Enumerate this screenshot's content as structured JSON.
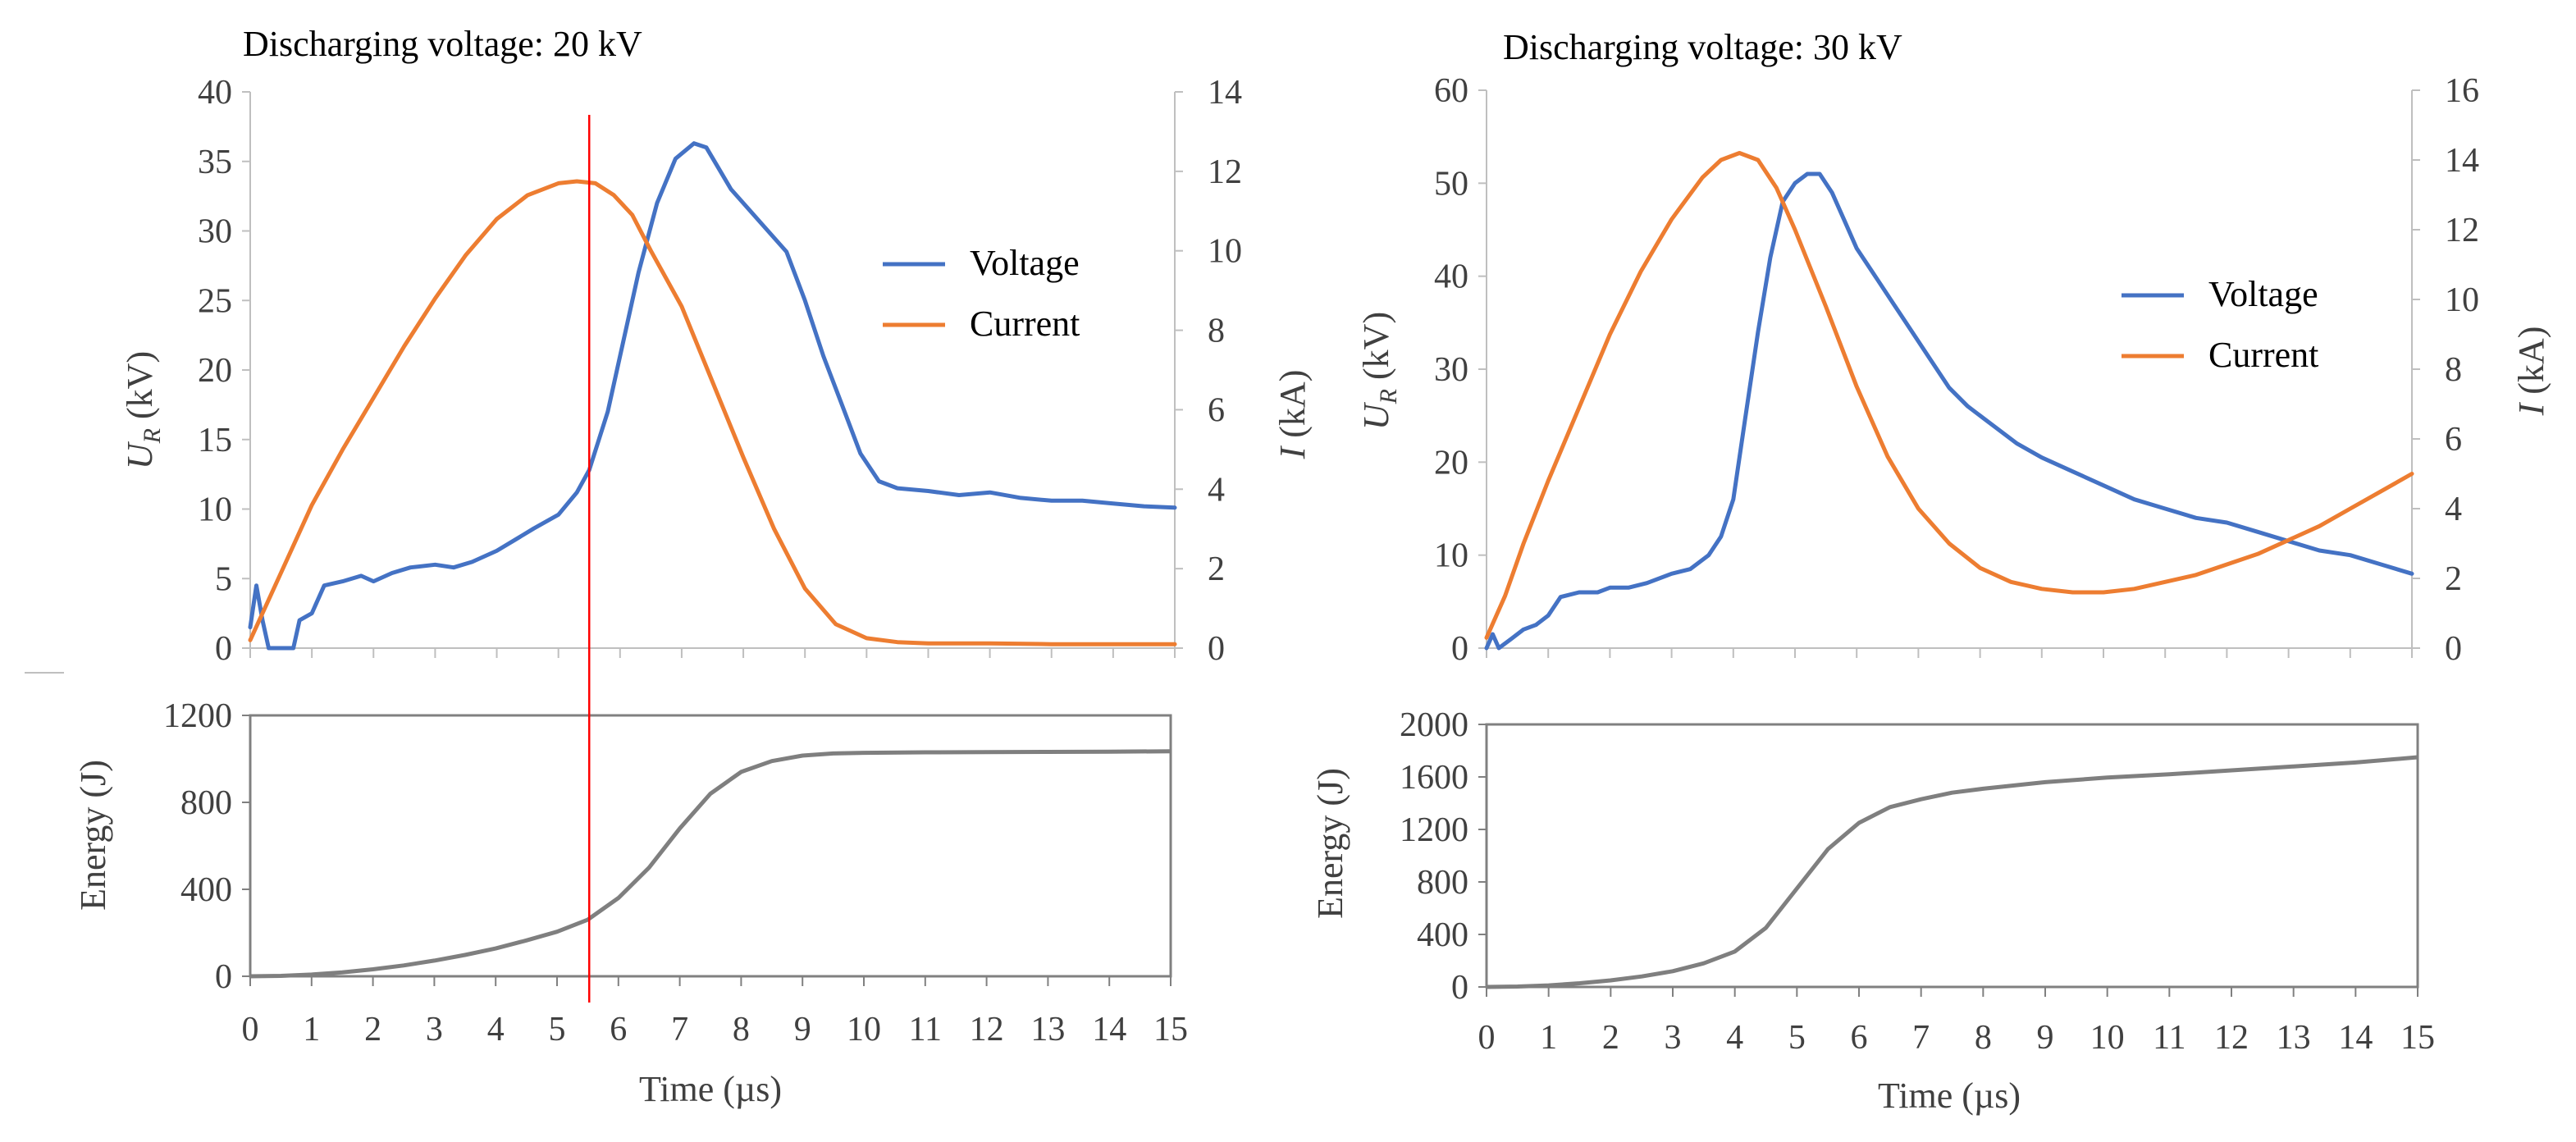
{
  "figure": {
    "panels": [
      {
        "title": "Discharging voltage: 20 kV",
        "top": {
          "ylabel_left": "U",
          "ylabel_left_sub": "R",
          "ylabel_left_unit": " (kV)",
          "ylabel_right": "I",
          "ylabel_right_unit": " (kA)",
          "yticks_left": [
            "0",
            "5",
            "10",
            "15",
            "20",
            "25",
            "30",
            "35",
            "40"
          ],
          "yticks_right": [
            "0",
            "2",
            "4",
            "6",
            "8",
            "10",
            "12",
            "14"
          ],
          "legend": [
            "Voltage",
            "Current"
          ]
        },
        "bottom": {
          "ylabel": "Energy (J)",
          "yticks": [
            "0",
            "400",
            "800",
            "1200"
          ],
          "xticks": [
            "0",
            "1",
            "2",
            "3",
            "4",
            "5",
            "6",
            "7",
            "8",
            "9",
            "10",
            "11",
            "12",
            "13",
            "14",
            "15"
          ],
          "xlabel": "Time (µs)"
        }
      },
      {
        "title": "Discharging voltage: 30 kV",
        "top": {
          "ylabel_left": "U",
          "ylabel_left_sub": "R",
          "ylabel_left_unit": " (kV)",
          "ylabel_right": "I",
          "ylabel_right_unit": " (kA)",
          "yticks_left": [
            "0",
            "10",
            "20",
            "30",
            "40",
            "50",
            "60"
          ],
          "yticks_right": [
            "0",
            "2",
            "4",
            "6",
            "8",
            "10",
            "12",
            "14",
            "16"
          ],
          "legend": [
            "Voltage",
            "Current"
          ]
        },
        "bottom": {
          "ylabel": "Energy (J)",
          "yticks": [
            "0",
            "400",
            "800",
            "1200",
            "1600",
            "2000"
          ],
          "xticks": [
            "0",
            "1",
            "2",
            "3",
            "4",
            "5",
            "6",
            "7",
            "8",
            "9",
            "10",
            "11",
            "12",
            "13",
            "14",
            "15"
          ],
          "xlabel": "Time (µs)"
        }
      }
    ]
  },
  "chart_data": [
    {
      "type": "line",
      "title": "Discharging voltage: 20 kV",
      "xlabel": "Time (µs)",
      "xlim": [
        0,
        15
      ],
      "colors": {
        "voltage": "#4472C4",
        "current": "#ED7D31",
        "energy": "#7F7F7F",
        "marker": "#FF0000"
      },
      "marker_line_x": 5.5,
      "top": {
        "ylabel_left": "UR (kV)",
        "ylim_left": [
          0,
          40
        ],
        "ylabel_right": "I (kA)",
        "ylim_right": [
          0,
          14
        ],
        "series": [
          {
            "name": "Voltage",
            "axis": "left",
            "x": [
              0,
              0.1,
              0.2,
              0.3,
              0.5,
              0.7,
              0.8,
              1.0,
              1.2,
              1.5,
              1.8,
              2.0,
              2.3,
              2.6,
              3.0,
              3.3,
              3.6,
              4.0,
              4.3,
              4.6,
              5.0,
              5.3,
              5.5,
              5.8,
              6.0,
              6.3,
              6.6,
              6.9,
              7.2,
              7.4,
              7.6,
              7.8,
              8.0,
              8.3,
              8.7,
              9.0,
              9.3,
              9.6,
              9.9,
              10.2,
              10.5,
              11.0,
              11.5,
              12.0,
              12.5,
              13.0,
              13.5,
              14.0,
              14.5,
              15.0
            ],
            "y": [
              1.5,
              4.5,
              2.0,
              0,
              0,
              0,
              2.0,
              2.5,
              4.5,
              4.8,
              5.2,
              4.8,
              5.4,
              5.8,
              6.0,
              5.8,
              6.2,
              7.0,
              7.8,
              8.6,
              9.6,
              11.2,
              12.8,
              17.0,
              21.0,
              27.0,
              32.0,
              35.2,
              36.3,
              36.0,
              34.5,
              33.0,
              32.0,
              30.5,
              28.5,
              25.0,
              21.0,
              17.5,
              14.0,
              12.0,
              11.5,
              11.3,
              11.0,
              11.2,
              10.8,
              10.6,
              10.6,
              10.4,
              10.2,
              10.1
            ]
          },
          {
            "name": "Current",
            "axis": "right",
            "x": [
              0,
              0.5,
              1.0,
              1.5,
              2.0,
              2.5,
              3.0,
              3.5,
              4.0,
              4.5,
              5.0,
              5.3,
              5.6,
              5.9,
              6.2,
              6.5,
              7.0,
              7.5,
              8.0,
              8.5,
              9.0,
              9.5,
              10.0,
              10.5,
              11.0,
              12.0,
              13.0,
              14.0,
              15.0
            ],
            "y": [
              0.2,
              1.9,
              3.6,
              5.0,
              6.3,
              7.6,
              8.8,
              9.9,
              10.8,
              11.4,
              11.7,
              11.75,
              11.7,
              11.4,
              10.9,
              10.0,
              8.6,
              6.7,
              4.8,
              3.0,
              1.5,
              0.6,
              0.25,
              0.15,
              0.12,
              0.12,
              0.1,
              0.1,
              0.1
            ]
          }
        ]
      },
      "bottom": {
        "ylabel": "Energy (J)",
        "ylim": [
          0,
          1200
        ],
        "series": [
          {
            "name": "Energy",
            "x": [
              0,
              0.5,
              1.0,
              1.5,
              2.0,
              2.5,
              3.0,
              3.5,
              4.0,
              4.5,
              5.0,
              5.5,
              6.0,
              6.5,
              7.0,
              7.5,
              8.0,
              8.5,
              9.0,
              9.5,
              10.0,
              11.0,
              12.0,
              13.0,
              14.0,
              15.0
            ],
            "y": [
              0,
              2,
              8,
              18,
              32,
              50,
              72,
              98,
              128,
              165,
              205,
              260,
              360,
              500,
              680,
              840,
              940,
              990,
              1015,
              1025,
              1028,
              1030,
              1031,
              1032,
              1033,
              1035
            ]
          }
        ]
      }
    },
    {
      "type": "line",
      "title": "Discharging voltage: 30 kV",
      "xlabel": "Time (µs)",
      "xlim": [
        0,
        15
      ],
      "colors": {
        "voltage": "#4472C4",
        "current": "#ED7D31",
        "energy": "#7F7F7F"
      },
      "top": {
        "ylabel_left": "UR (kV)",
        "ylim_left": [
          0,
          60
        ],
        "ylabel_right": "I (kA)",
        "ylim_right": [
          0,
          16
        ],
        "series": [
          {
            "name": "Voltage",
            "axis": "left",
            "x": [
              0,
              0.1,
              0.2,
              0.4,
              0.6,
              0.8,
              1.0,
              1.2,
              1.5,
              1.8,
              2.0,
              2.3,
              2.6,
              3.0,
              3.3,
              3.6,
              3.8,
              4.0,
              4.2,
              4.4,
              4.6,
              4.8,
              5.0,
              5.2,
              5.4,
              5.6,
              5.8,
              6.0,
              6.3,
              6.6,
              6.9,
              7.2,
              7.5,
              7.8,
              8.2,
              8.6,
              9.0,
              9.5,
              10.0,
              10.5,
              11.0,
              11.5,
              12.0,
              12.5,
              13.0,
              13.5,
              14.0,
              14.5,
              15.0
            ],
            "y": [
              0,
              1.5,
              0,
              1,
              2,
              2.5,
              3.5,
              5.5,
              6,
              6,
              6.5,
              6.5,
              7,
              8,
              8.5,
              10,
              12,
              16,
              25,
              34,
              42,
              48,
              50,
              51,
              51,
              49,
              46,
              43,
              40,
              37,
              34,
              31,
              28,
              26,
              24,
              22,
              20.5,
              19,
              17.5,
              16,
              15,
              14,
              13.5,
              12.5,
              11.5,
              10.5,
              10,
              9,
              8
            ]
          },
          {
            "name": "Current",
            "axis": "right",
            "x": [
              0,
              0.3,
              0.6,
              1.0,
              1.5,
              2.0,
              2.5,
              3.0,
              3.5,
              3.8,
              4.1,
              4.4,
              4.7,
              5.0,
              5.5,
              6.0,
              6.5,
              7.0,
              7.5,
              8.0,
              8.5,
              9.0,
              9.5,
              10.0,
              10.5,
              11.0,
              11.5,
              12.0,
              12.5,
              13.0,
              13.5,
              14.0,
              14.5,
              15.0
            ],
            "y": [
              0.3,
              1.5,
              3.0,
              4.8,
              6.9,
              9.0,
              10.8,
              12.3,
              13.5,
              14.0,
              14.2,
              14.0,
              13.2,
              12.0,
              9.8,
              7.5,
              5.5,
              4.0,
              3.0,
              2.3,
              1.9,
              1.7,
              1.6,
              1.6,
              1.7,
              1.9,
              2.1,
              2.4,
              2.7,
              3.1,
              3.5,
              4.0,
              4.5,
              5.0
            ]
          }
        ]
      },
      "bottom": {
        "ylabel": "Energy (J)",
        "ylim": [
          0,
          2000
        ],
        "series": [
          {
            "name": "Energy",
            "x": [
              0,
              0.5,
              1.0,
              1.5,
              2.0,
              2.5,
              3.0,
              3.5,
              4.0,
              4.5,
              5.0,
              5.5,
              6.0,
              6.5,
              7.0,
              7.5,
              8.0,
              9.0,
              10.0,
              11.0,
              12.0,
              13.0,
              14.0,
              15.0
            ],
            "y": [
              0,
              3,
              12,
              28,
              50,
              80,
              120,
              180,
              270,
              450,
              750,
              1050,
              1250,
              1370,
              1430,
              1480,
              1510,
              1560,
              1595,
              1620,
              1650,
              1680,
              1710,
              1750
            ]
          }
        ]
      }
    }
  ]
}
